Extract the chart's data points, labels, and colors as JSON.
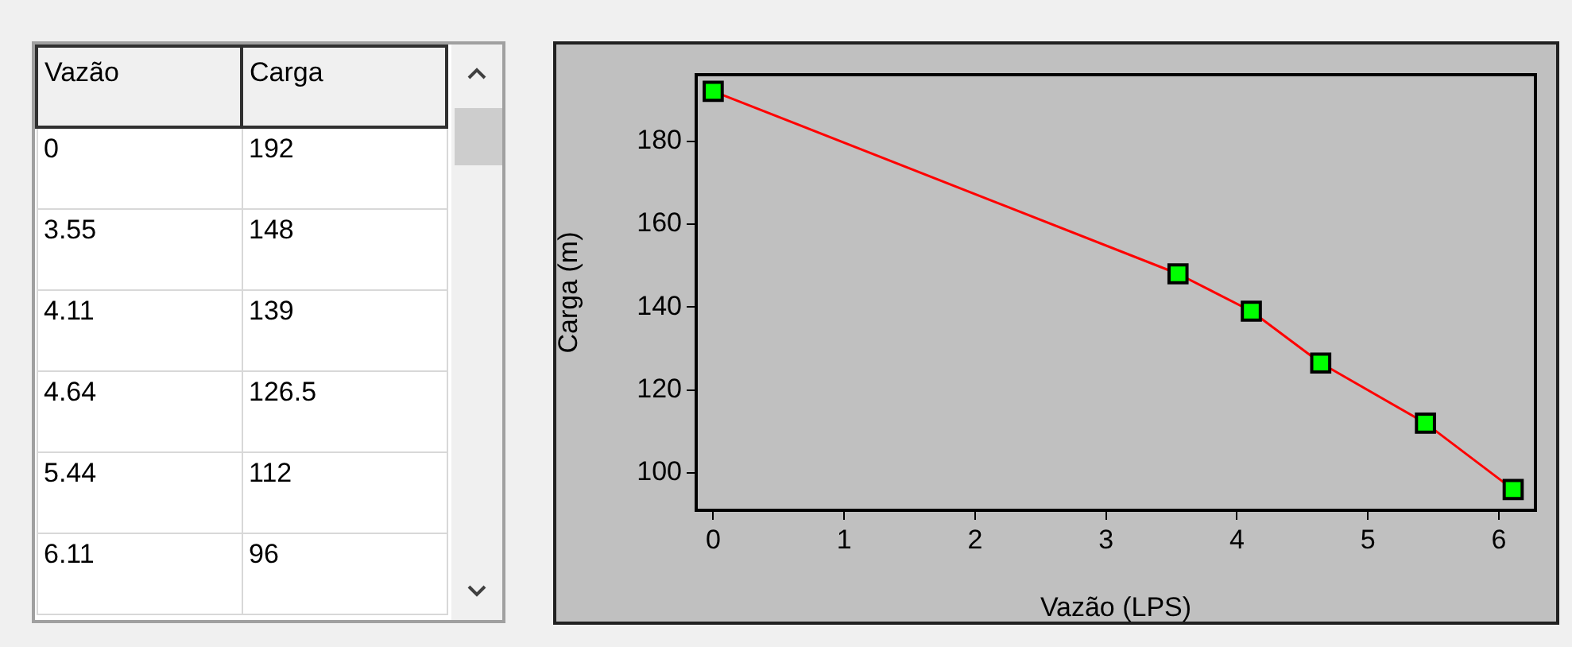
{
  "chart_data": [
    {
      "type": "other",
      "annotations": [
        "Vazão",
        "Carga",
        "0",
        "192",
        "3.55",
        "148",
        "4.11",
        "139",
        "4.64",
        "126.5",
        "5.44",
        "112",
        "6.11",
        "96"
      ]
    },
    {
      "type": "line",
      "xlabel": "Vazão (LPS)",
      "ylabel": "Carga (m)",
      "series": [
        {
          "color": "#ff0000",
          "colors": [
            "#00ff00",
            "#00ff00",
            "#00ff00",
            "#00ff00",
            "#00ff00",
            "#00ff00"
          ],
          "x": [
            0,
            3.55,
            4.11,
            4.64,
            5.44,
            6.11
          ],
          "values": [
            192,
            148,
            139,
            126.5,
            112,
            96
          ]
        }
      ],
      "marker": "square",
      "xlim": [
        -0.13,
        6.28
      ],
      "xticks": [
        0,
        1,
        2,
        3,
        4,
        5,
        6
      ],
      "ylim": [
        91,
        196
      ],
      "yticks": [
        100,
        120,
        140,
        160,
        180
      ],
      "grid": false,
      "legend": false
    }
  ]
}
